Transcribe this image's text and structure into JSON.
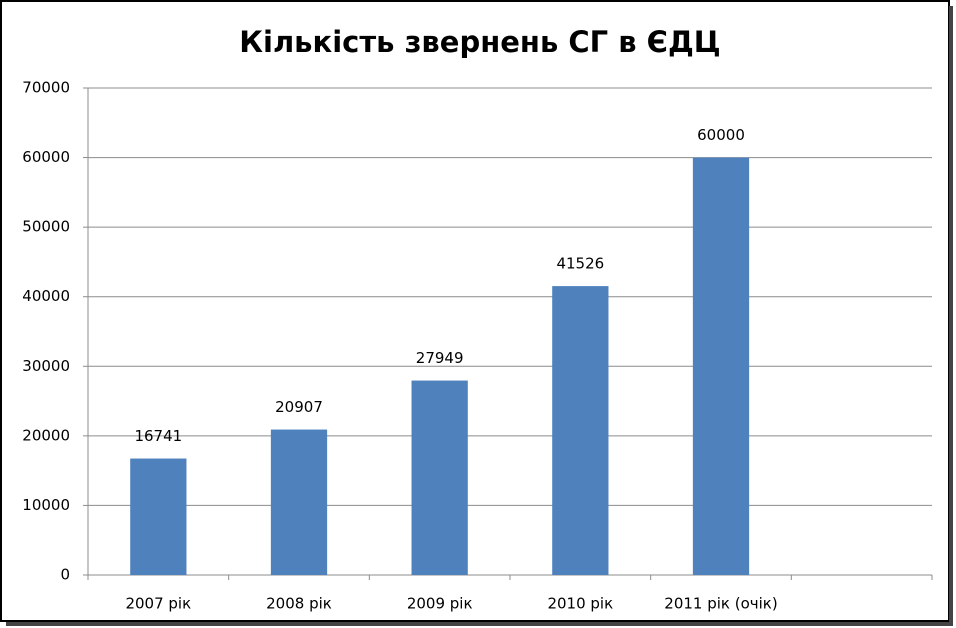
{
  "chart_data": {
    "type": "bar",
    "title": "Кількість звернень СГ в ЄДЦ",
    "categories": [
      "2007 рік",
      "2008 рік",
      "2009 рік",
      "2010 рік",
      "2011 рік (очік)",
      null
    ],
    "values": [
      16741,
      20907,
      27949,
      41526,
      60000,
      null
    ],
    "color": "#4f81bd",
    "ylim": [
      0,
      70000
    ],
    "yticks": [
      0,
      10000,
      20000,
      30000,
      40000,
      50000,
      60000,
      70000
    ],
    "grid": true
  }
}
